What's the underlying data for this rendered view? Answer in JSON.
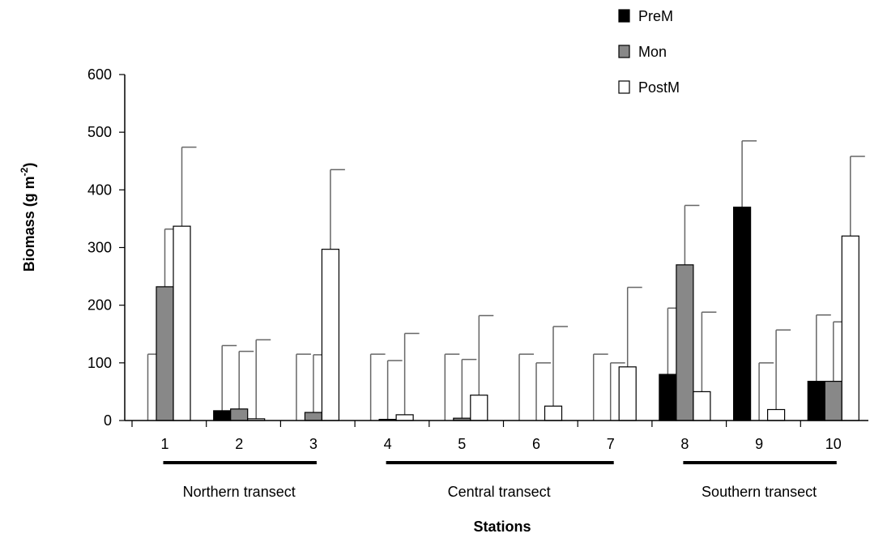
{
  "chart_data": {
    "type": "bar",
    "xlabel": "Stations",
    "ylabel": "Biomass (g m",
    "ylabel_sup": "-2",
    "ylabel_close": ")",
    "ylim": [
      0,
      600
    ],
    "yticks": [
      "0",
      "100",
      "200",
      "300",
      "400",
      "500",
      "600"
    ],
    "categories": [
      "1",
      "2",
      "3",
      "4",
      "5",
      "6",
      "7",
      "8",
      "9",
      "10"
    ],
    "series": [
      {
        "name": "PreM",
        "color": "#000000",
        "values": [
          0,
          17,
          0,
          0,
          0,
          0,
          0,
          80,
          370,
          68
        ],
        "error": [
          115,
          113,
          115,
          115,
          115,
          115,
          115,
          115,
          115,
          115
        ]
      },
      {
        "name": "Mon",
        "color": "#888888",
        "values": [
          232,
          20,
          14,
          2,
          4,
          0,
          0,
          270,
          0,
          68
        ],
        "error": [
          100,
          100,
          100,
          102,
          102,
          100,
          100,
          103,
          100,
          103
        ]
      },
      {
        "name": "PostM",
        "color": "#ffffff",
        "values": [
          337,
          3,
          297,
          10,
          44,
          25,
          93,
          50,
          19,
          320
        ],
        "error": [
          137,
          137,
          138,
          141,
          138,
          138,
          138,
          138,
          138,
          138
        ]
      }
    ],
    "groups": [
      {
        "label": "Northern transect",
        "from": 1,
        "to": 3
      },
      {
        "label": "Central transect",
        "from": 4,
        "to": 7
      },
      {
        "label": "Southern transect",
        "from": 8,
        "to": 10
      }
    ],
    "legend_position": "top-right",
    "grid": false
  }
}
